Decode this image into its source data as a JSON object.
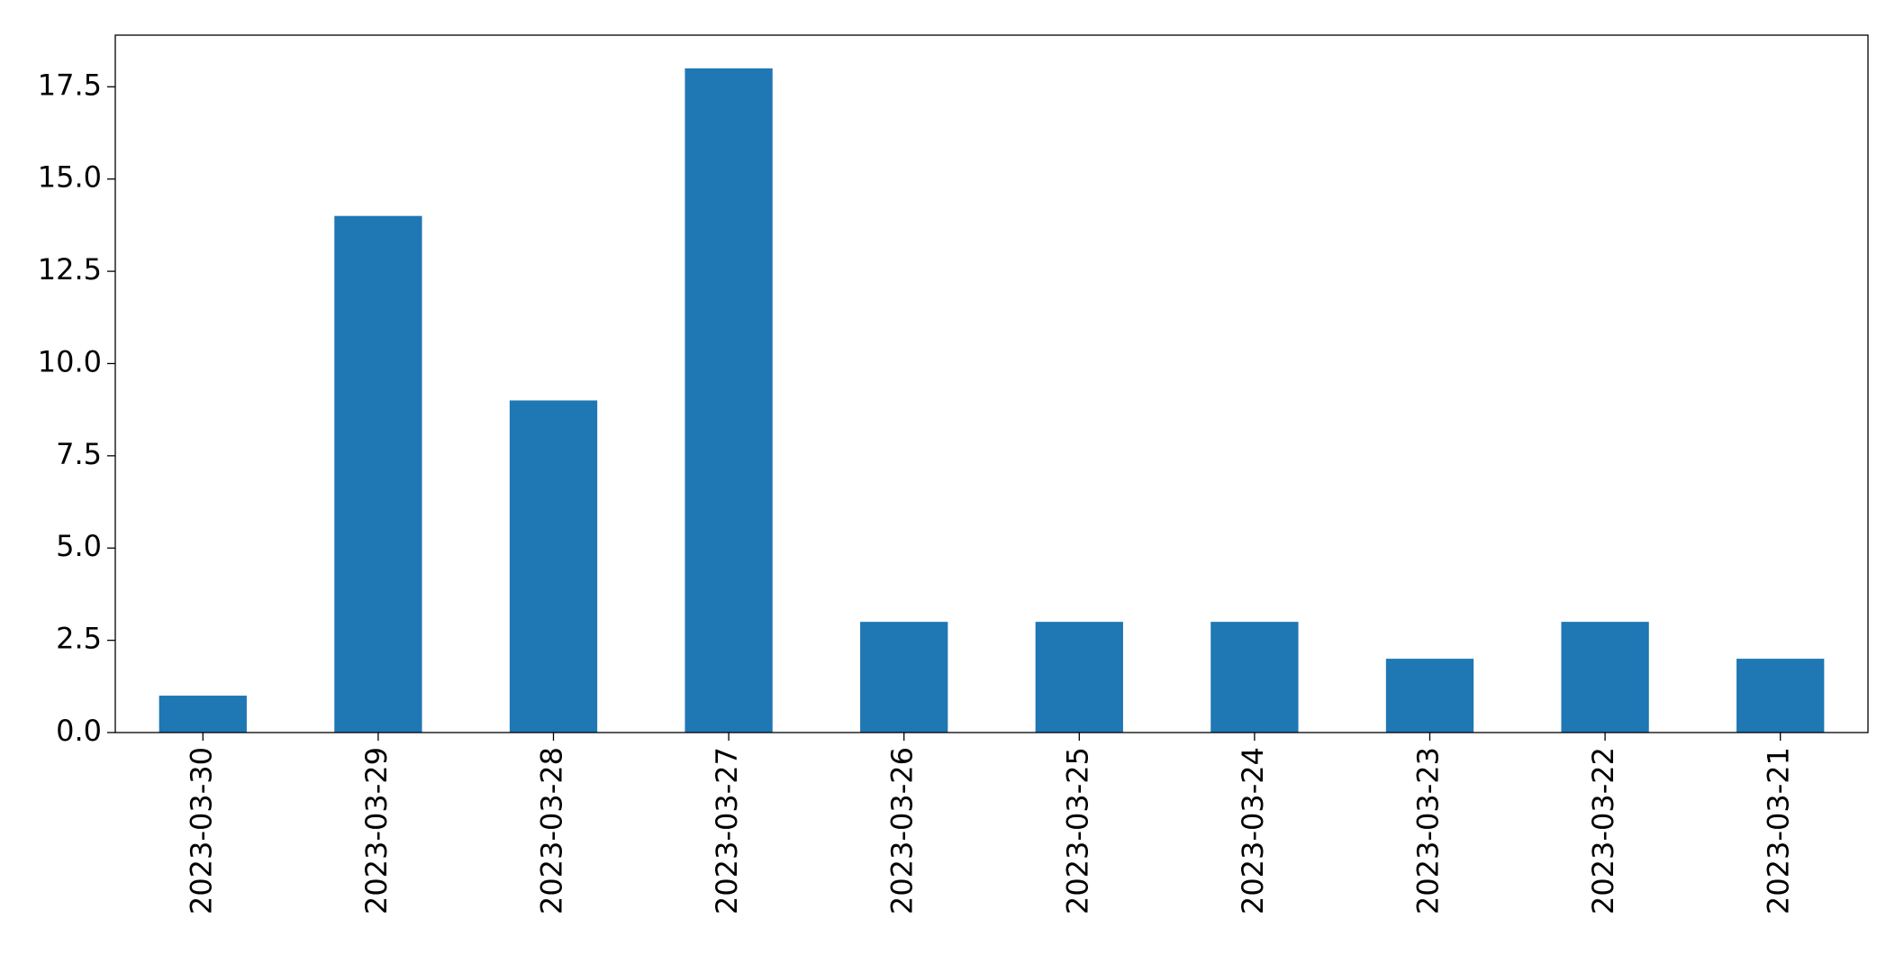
{
  "chart_data": {
    "type": "bar",
    "categories": [
      "2023-03-30",
      "2023-03-29",
      "2023-03-28",
      "2023-03-27",
      "2023-03-26",
      "2023-03-25",
      "2023-03-24",
      "2023-03-23",
      "2023-03-22",
      "2023-03-21"
    ],
    "values": [
      1,
      14,
      9,
      18,
      3,
      3,
      3,
      2,
      3,
      2
    ],
    "color": "#1f77b4",
    "ylim": [
      0,
      18.9
    ],
    "yticks": [
      {
        "value": 0,
        "label": "0.0"
      },
      2.5,
      {
        "value": 5,
        "label": "5.0"
      },
      7.5,
      {
        "value": 10,
        "label": "10.0"
      },
      12.5,
      {
        "value": 15,
        "label": "15.0"
      },
      17.5
    ],
    "grid": false
  }
}
